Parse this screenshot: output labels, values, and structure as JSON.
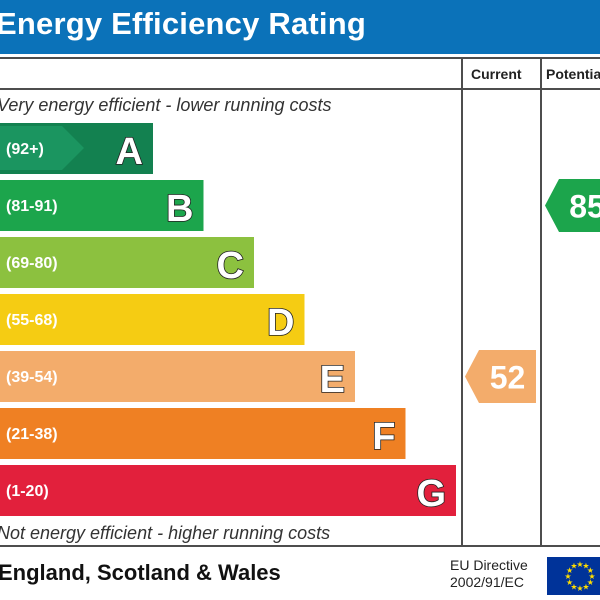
{
  "header": {
    "title": "Energy Efficiency Rating"
  },
  "columns": {
    "current": "Current",
    "potential": "Potentia"
  },
  "notes": {
    "top": "Very energy efficient - lower running costs",
    "bottom": "Not energy efficient - higher running costs"
  },
  "footer": {
    "region": "England, Scotland & Wales",
    "directive_line1": "EU Directive",
    "directive_line2": "2002/91/EC"
  },
  "colors": {
    "title_bar": "#0b72b9",
    "A": "#138150",
    "B": "#1ca54c",
    "C": "#8cc13f",
    "D": "#f5cc13",
    "E": "#f3ac6b",
    "F": "#ef8023",
    "G": "#e2203c",
    "eu_flag": "#003399",
    "eu_stars": "#ffdd00"
  },
  "chart_data": {
    "type": "bar",
    "categories": [
      "A",
      "B",
      "C",
      "D",
      "E",
      "F",
      "G"
    ],
    "ranges": [
      "(92+)",
      "(81-91)",
      "(69-80)",
      "(55-68)",
      "(39-54)",
      "(21-38)",
      "(1-20)"
    ],
    "current": {
      "value": 52,
      "band": "E",
      "color": "#f3ac6b"
    },
    "potential": {
      "value": 85,
      "band": "B",
      "color": "#1ca54c"
    }
  }
}
